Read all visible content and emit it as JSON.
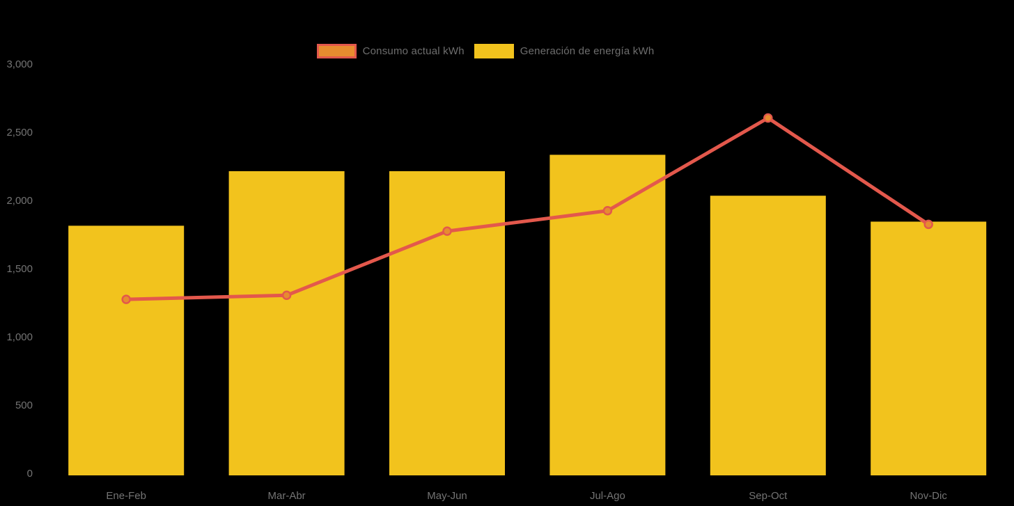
{
  "chart_data": {
    "type": "combo",
    "title": "",
    "categories": [
      "Ene-Feb",
      "Mar-Abr",
      "May-Jun",
      "Jul-Ago",
      "Sep-Oct",
      "Nov-Dic"
    ],
    "series": [
      {
        "name": "Consumo actual kWh",
        "type": "line",
        "color": "#e3584c",
        "marker_fill": "#e78c2f",
        "values": [
          1290,
          1320,
          1790,
          1940,
          2620,
          1840
        ]
      },
      {
        "name": "Generación de energía kWh",
        "type": "bar",
        "color": "#f2c31d",
        "values": [
          1830,
          2230,
          2230,
          2350,
          2050,
          1860
        ]
      }
    ],
    "xlabel": "",
    "ylabel": "",
    "ylim": [
      0,
      3000
    ],
    "ytick_step": 500,
    "ytick_labels": [
      "0",
      "500",
      "1,000",
      "1,500",
      "2,000",
      "2,500",
      "3,000"
    ],
    "grid": false,
    "legend_position": "top-center",
    "background": "#000000",
    "axis_text_color": "#747474",
    "legend_text_color": "#6e6e6e"
  }
}
